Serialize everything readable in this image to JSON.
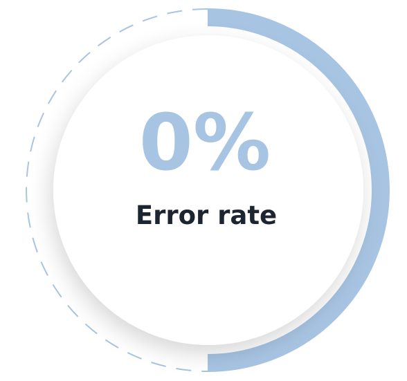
{
  "metric": {
    "value": "0%",
    "label": "Error rate"
  }
}
